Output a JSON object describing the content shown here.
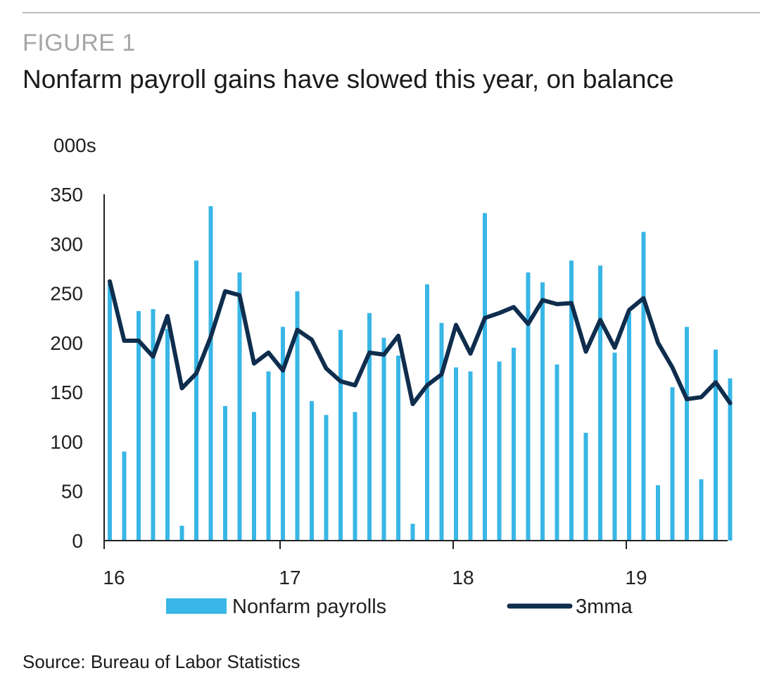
{
  "header": {
    "figure_label": "FIGURE 1",
    "title": "Nonfarm payroll gains have slowed this year, on balance"
  },
  "footer": {
    "source": "Source: Bureau of Labor Statistics"
  },
  "chart_data": {
    "type": "bar",
    "title": "Nonfarm payroll gains have slowed this year, on balance",
    "ylabel": "000s",
    "xlabel": "",
    "ylim": [
      0,
      350
    ],
    "yticks": [
      0,
      50,
      100,
      150,
      200,
      250,
      300,
      350
    ],
    "xtick_labels": [
      "16",
      "17",
      "18",
      "19"
    ],
    "xtick_positions": [
      0,
      12,
      24,
      36
    ],
    "x_months": 43,
    "colors": {
      "bars": "#38b6e6",
      "line": "#0f2d4d",
      "axis": "#222222"
    },
    "legend": [
      {
        "name": "Nonfarm payrolls",
        "kind": "bar"
      },
      {
        "name": "3mma",
        "kind": "line"
      }
    ],
    "series": [
      {
        "name": "Nonfarm payrolls",
        "kind": "bar",
        "values": [
          260,
          90,
          232,
          234,
          214,
          15,
          283,
          338,
          136,
          271,
          130,
          171,
          216,
          252,
          141,
          127,
          213,
          130,
          230,
          205,
          187,
          17,
          259,
          220,
          175,
          171,
          331,
          181,
          195,
          271,
          261,
          178,
          283,
          109,
          278,
          190,
          231,
          312,
          56,
          155,
          216,
          62,
          193,
          164
        ]
      },
      {
        "name": "3mma",
        "kind": "line",
        "values": [
          262,
          202,
          202,
          186,
          227,
          154,
          169,
          206,
          252,
          248,
          179,
          190,
          172,
          213,
          203,
          174,
          161,
          157,
          190,
          188,
          207,
          138,
          157,
          168,
          218,
          189,
          225,
          230,
          236,
          219,
          243,
          239,
          240,
          191,
          223,
          195,
          233,
          245,
          200,
          175,
          143,
          145,
          160,
          139
        ]
      }
    ]
  }
}
